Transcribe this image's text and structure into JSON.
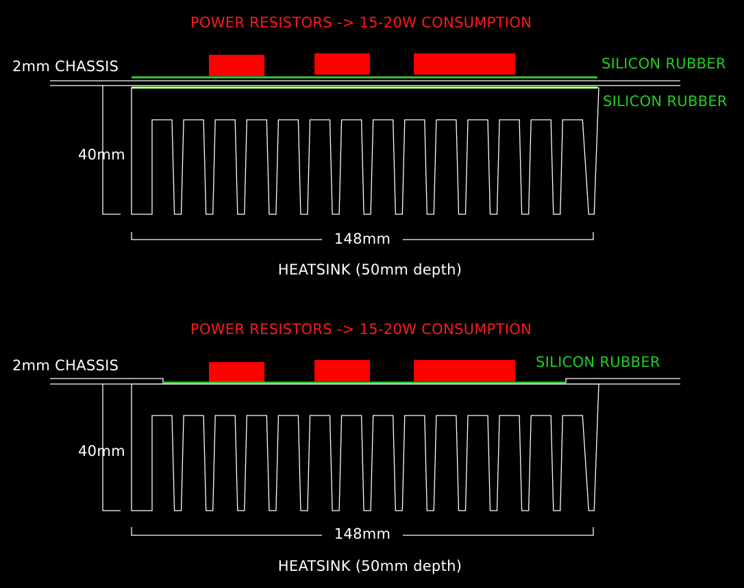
{
  "diagrams": [
    {
      "title": "POWER RESISTORS -> 15-20W CONSUMPTION",
      "chassis_label": "2mm CHASSIS",
      "rubber_labels": [
        "SILICON RUBBER",
        "SILICON RUBBER"
      ],
      "height_label": "40mm",
      "width_label": "148mm",
      "heatsink_label": "HEATSINK (50mm depth)",
      "fin_count": 14,
      "resistor_count": 3
    },
    {
      "title": "POWER RESISTORS -> 15-20W CONSUMPTION",
      "chassis_label": "2mm CHASSIS",
      "rubber_labels": [
        "SILICON RUBBER"
      ],
      "height_label": "40mm",
      "width_label": "148mm",
      "heatsink_label": "HEATSINK (50mm depth)",
      "fin_count": 14,
      "resistor_count": 3
    }
  ],
  "colors": {
    "background": "#000000",
    "title": "#ff1a1a",
    "resistor": "#ff0000",
    "rubber_label": "#22cc22",
    "line": "#ffffff"
  }
}
